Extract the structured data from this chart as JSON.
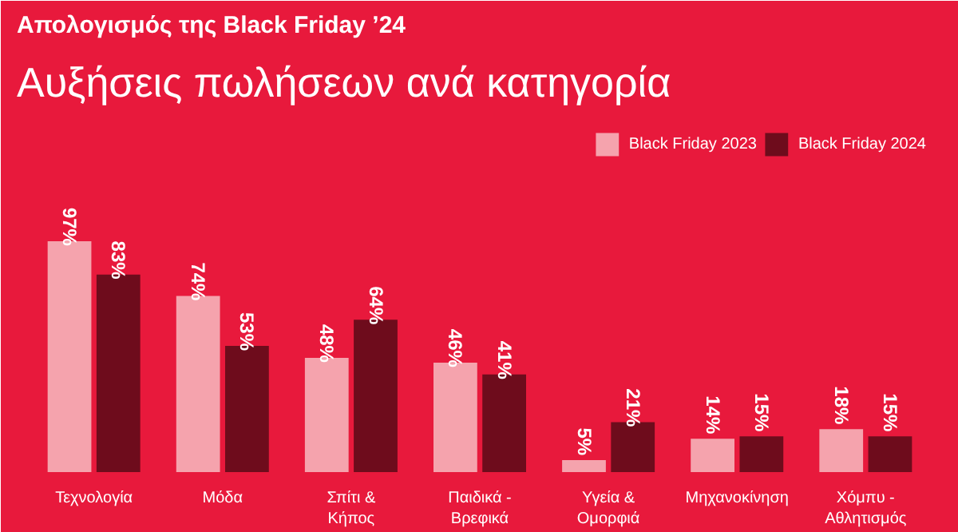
{
  "chart_data": {
    "type": "bar",
    "title": "Απολογισμός της Black Friday ’24",
    "subtitle": "Αυξήσεις πωλήσεων ανά κατηγορία",
    "categories": [
      "Τεχνολογία",
      "Μόδα",
      "Σπίτι & Κήπος",
      "Παιδικά - Βρεφικά",
      "Υγεία & Ομορφιά",
      "Μηχανοκίνηση",
      "Χόμπυ - Αθλητισμός"
    ],
    "series": [
      {
        "name": "Black Friday 2023",
        "color": "#f5a3ad",
        "values": [
          97,
          74,
          48,
          46,
          5,
          14,
          18
        ],
        "value_labels": [
          "97%",
          "74%",
          "48%",
          "46%",
          "5%",
          "14%",
          "18%"
        ]
      },
      {
        "name": "Black Friday 2024",
        "color": "#6e0c1c",
        "values": [
          83,
          53,
          64,
          41,
          21,
          15,
          15
        ],
        "value_labels": [
          "83%",
          "53%",
          "64%",
          "41%",
          "21%",
          "15%",
          "15%"
        ]
      }
    ],
    "legend": "top right",
    "tick_labels": "x"
  }
}
